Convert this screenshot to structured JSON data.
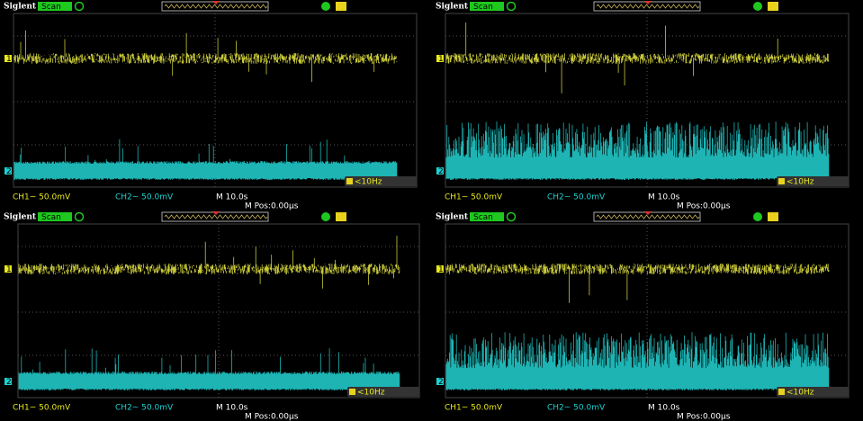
{
  "screens": [
    {
      "brand": "Siglent",
      "mode": "Scan",
      "ch1_marker": "1",
      "ch2_marker": "2",
      "ch1_scale": "CH1~ 50.0mV",
      "ch2_scale": "CH2~ 50.0mV",
      "timebase": "M 10.0s",
      "position": "M Pos:0.00μs",
      "trigger": "<10Hz"
    },
    {
      "brand": "Siglent",
      "mode": "Scan",
      "ch1_marker": "1",
      "ch2_marker": "2",
      "ch1_scale": "CH1~ 50.0mV",
      "ch2_scale": "CH2~ 50.0mV",
      "timebase": "M 10.0s",
      "position": "M Pos:0.00μs",
      "trigger": "<10Hz"
    },
    {
      "brand": "Siglent",
      "mode": "Scan",
      "ch1_marker": "1",
      "ch2_marker": "2",
      "ch1_scale": "CH1~ 50.0mV",
      "ch2_scale": "CH2~ 50.0mV",
      "timebase": "M 10.0s",
      "position": "M Pos:0.00μs",
      "trigger": "<10Hz"
    },
    {
      "brand": "Siglent",
      "mode": "Scan",
      "ch1_marker": "1",
      "ch2_marker": "2",
      "ch1_scale": "CH1~ 50.0mV",
      "ch2_scale": "CH2~ 50.0mV",
      "timebase": "M 10.0s",
      "position": "M Pos:0.00μs",
      "trigger": "<10Hz"
    }
  ]
}
